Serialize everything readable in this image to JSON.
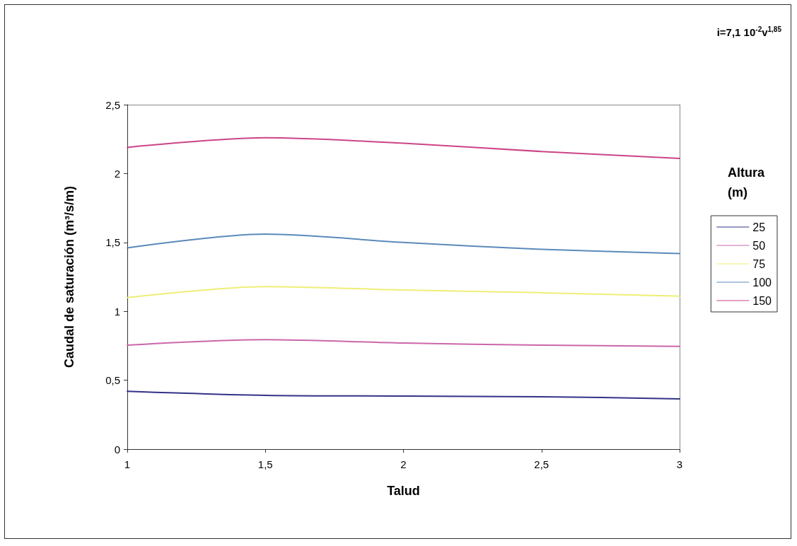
{
  "chart_data": {
    "type": "line",
    "xlabel": "Talud",
    "ylabel": "Caudal de saturación (m³/s/m)",
    "legend_title": "Altura (m)",
    "annotations": [
      "i=7,1 10$^{-2}$v$^{1,85}$"
    ],
    "x": [
      1,
      1.5,
      2,
      2.5,
      3
    ],
    "series": [
      {
        "name": "25",
        "color": "#333388",
        "values": [
          0.42,
          0.39,
          0.385,
          0.38,
          0.365
        ]
      },
      {
        "name": "50",
        "color": "#cc66aa",
        "values": [
          0.755,
          0.795,
          0.77,
          0.755,
          0.745
        ]
      },
      {
        "name": "75",
        "color": "#eeee77",
        "values": [
          1.1,
          1.18,
          1.155,
          1.135,
          1.11
        ]
      },
      {
        "name": "100",
        "color": "#5a8abb",
        "values": [
          1.46,
          1.56,
          1.5,
          1.45,
          1.42
        ]
      },
      {
        "name": "150",
        "color": "#cc4488",
        "values": [
          2.19,
          2.26,
          2.22,
          2.16,
          2.11
        ]
      }
    ],
    "xlim": [
      1,
      3
    ],
    "xticks": [
      {
        "value": 1,
        "label": "1"
      },
      {
        "value": 1.5,
        "label": "1,5"
      },
      {
        "value": 2,
        "label": "2"
      },
      {
        "value": 2.5,
        "label": "2,5"
      },
      {
        "value": 3,
        "label": "3"
      }
    ],
    "ylim": [
      0,
      2.5
    ],
    "yticks": [
      {
        "value": 0,
        "label": "0"
      },
      {
        "value": 0.5,
        "label": "0,5"
      },
      {
        "value": 1,
        "label": "1"
      },
      {
        "value": 1.5,
        "label": "1,5"
      },
      {
        "value": 2,
        "label": "2"
      },
      {
        "value": 2.5,
        "label": "2,5"
      }
    ],
    "grid": false,
    "legend": "right",
    "marker": "none",
    "line_style": "solid"
  }
}
